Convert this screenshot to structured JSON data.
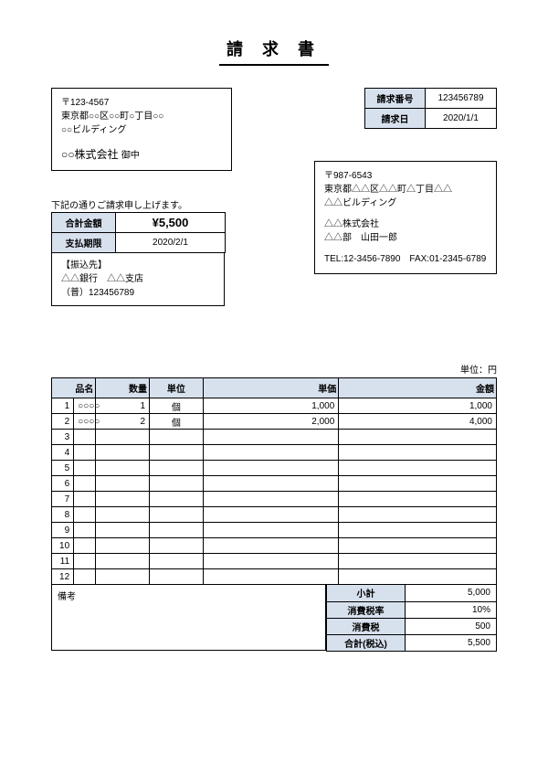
{
  "title": "請 求 書",
  "buyer": {
    "postal": "〒123-4567",
    "addr1": "東京都○○区○○町○丁目○○",
    "addr2": "○○ビルディング",
    "company": "○○株式会社",
    "suffix": "御中"
  },
  "meta": {
    "invoice_no_label": "請求番号",
    "invoice_no": "123456789",
    "invoice_date_label": "請求日",
    "invoice_date": "2020/1/1"
  },
  "seller": {
    "postal": "〒987-6543",
    "addr1": "東京都△△区△△町△丁目△△",
    "addr2": "△△ビルディング",
    "company": "△△株式会社",
    "dept_person": "△△部　山田一郎",
    "tel_fax": "TEL:12-3456-7890　FAX:01-2345-6789"
  },
  "notice": "下記の通りご請求申し上げます。",
  "totals": {
    "total_label": "合計金額",
    "total": "¥5,500",
    "due_label": "支払期限",
    "due": "2020/2/1"
  },
  "bank": {
    "title": "【振込先】",
    "line1": "△△銀行　△△支店",
    "line2": "（普）123456789"
  },
  "unit_label": "単位：円",
  "item_headers": {
    "name": "品名",
    "qty": "数量",
    "unit": "単位",
    "price": "単価",
    "amount": "金額"
  },
  "items": [
    {
      "no": "1",
      "name": "○○○○",
      "qty": "1",
      "unit": "個",
      "price": "1,000",
      "amount": "1,000"
    },
    {
      "no": "2",
      "name": "○○○○",
      "qty": "2",
      "unit": "個",
      "price": "2,000",
      "amount": "4,000"
    },
    {
      "no": "3",
      "name": "",
      "qty": "",
      "unit": "",
      "price": "",
      "amount": ""
    },
    {
      "no": "4",
      "name": "",
      "qty": "",
      "unit": "",
      "price": "",
      "amount": ""
    },
    {
      "no": "5",
      "name": "",
      "qty": "",
      "unit": "",
      "price": "",
      "amount": ""
    },
    {
      "no": "6",
      "name": "",
      "qty": "",
      "unit": "",
      "price": "",
      "amount": ""
    },
    {
      "no": "7",
      "name": "",
      "qty": "",
      "unit": "",
      "price": "",
      "amount": ""
    },
    {
      "no": "8",
      "name": "",
      "qty": "",
      "unit": "",
      "price": "",
      "amount": ""
    },
    {
      "no": "9",
      "name": "",
      "qty": "",
      "unit": "",
      "price": "",
      "amount": ""
    },
    {
      "no": "10",
      "name": "",
      "qty": "",
      "unit": "",
      "price": "",
      "amount": ""
    },
    {
      "no": "11",
      "name": "",
      "qty": "",
      "unit": "",
      "price": "",
      "amount": ""
    },
    {
      "no": "12",
      "name": "",
      "qty": "",
      "unit": "",
      "price": "",
      "amount": ""
    }
  ],
  "remarks_label": "備考",
  "summary": {
    "subtotal_label": "小計",
    "subtotal": "5,000",
    "tax_rate_label": "消費税率",
    "tax_rate": "10%",
    "tax_label": "消費税",
    "tax": "500",
    "grand_total_label": "合計(税込)",
    "grand_total": "5,500"
  },
  "colors": {
    "header_bg": "#d7e0ed",
    "border": "#000000",
    "background": "#ffffff"
  }
}
